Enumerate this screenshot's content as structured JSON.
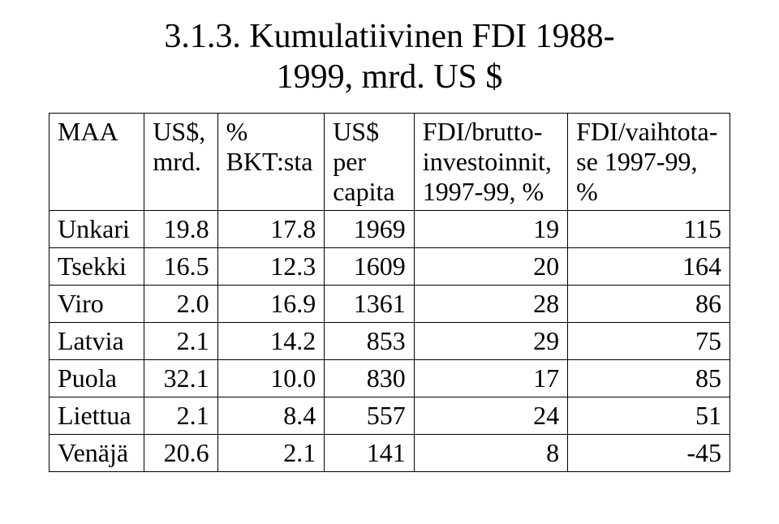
{
  "title_line1": "3.1.3. Kumulatiivinen FDI 1988-",
  "title_line2": "1999, mrd. US $",
  "table": {
    "columns": [
      {
        "key": "maa",
        "label_lines": [
          "MAA"
        ],
        "align": "left"
      },
      {
        "key": "us",
        "label_lines": [
          "US$,",
          "mrd."
        ],
        "align": "right"
      },
      {
        "key": "bkt",
        "label_lines": [
          "%",
          "BKT:sta"
        ],
        "align": "right"
      },
      {
        "key": "cap",
        "label_lines": [
          "US$ per",
          "capita"
        ],
        "align": "right"
      },
      {
        "key": "fdi1",
        "label_lines": [
          "FDI/brutto-",
          "investoinnit,",
          "1997-99, %"
        ],
        "align": "right"
      },
      {
        "key": "fdi2",
        "label_lines": [
          "FDI/vaihtota-",
          "se 1997-99,",
          "%"
        ],
        "align": "right"
      }
    ],
    "rows": [
      [
        "Unkari",
        "19.8",
        "17.8",
        "1969",
        "19",
        "115"
      ],
      [
        "Tsekki",
        "16.5",
        "12.3",
        "1609",
        "20",
        "164"
      ],
      [
        "Viro",
        "2.0",
        "16.9",
        "1361",
        "28",
        "86"
      ],
      [
        "Latvia",
        "2.1",
        "14.2",
        "853",
        "29",
        "75"
      ],
      [
        "Puola",
        "32.1",
        "10.0",
        "830",
        "17",
        "85"
      ],
      [
        "Liettua",
        "2.1",
        "8.4",
        "557",
        "24",
        "51"
      ],
      [
        "Venäjä",
        "20.6",
        "2.1",
        "141",
        "8",
        "-45"
      ]
    ],
    "font_family": "Times New Roman",
    "title_fontsize": 42,
    "cell_fontsize": 32,
    "border_color": "#000000",
    "background_color": "#ffffff",
    "text_color": "#000000"
  }
}
